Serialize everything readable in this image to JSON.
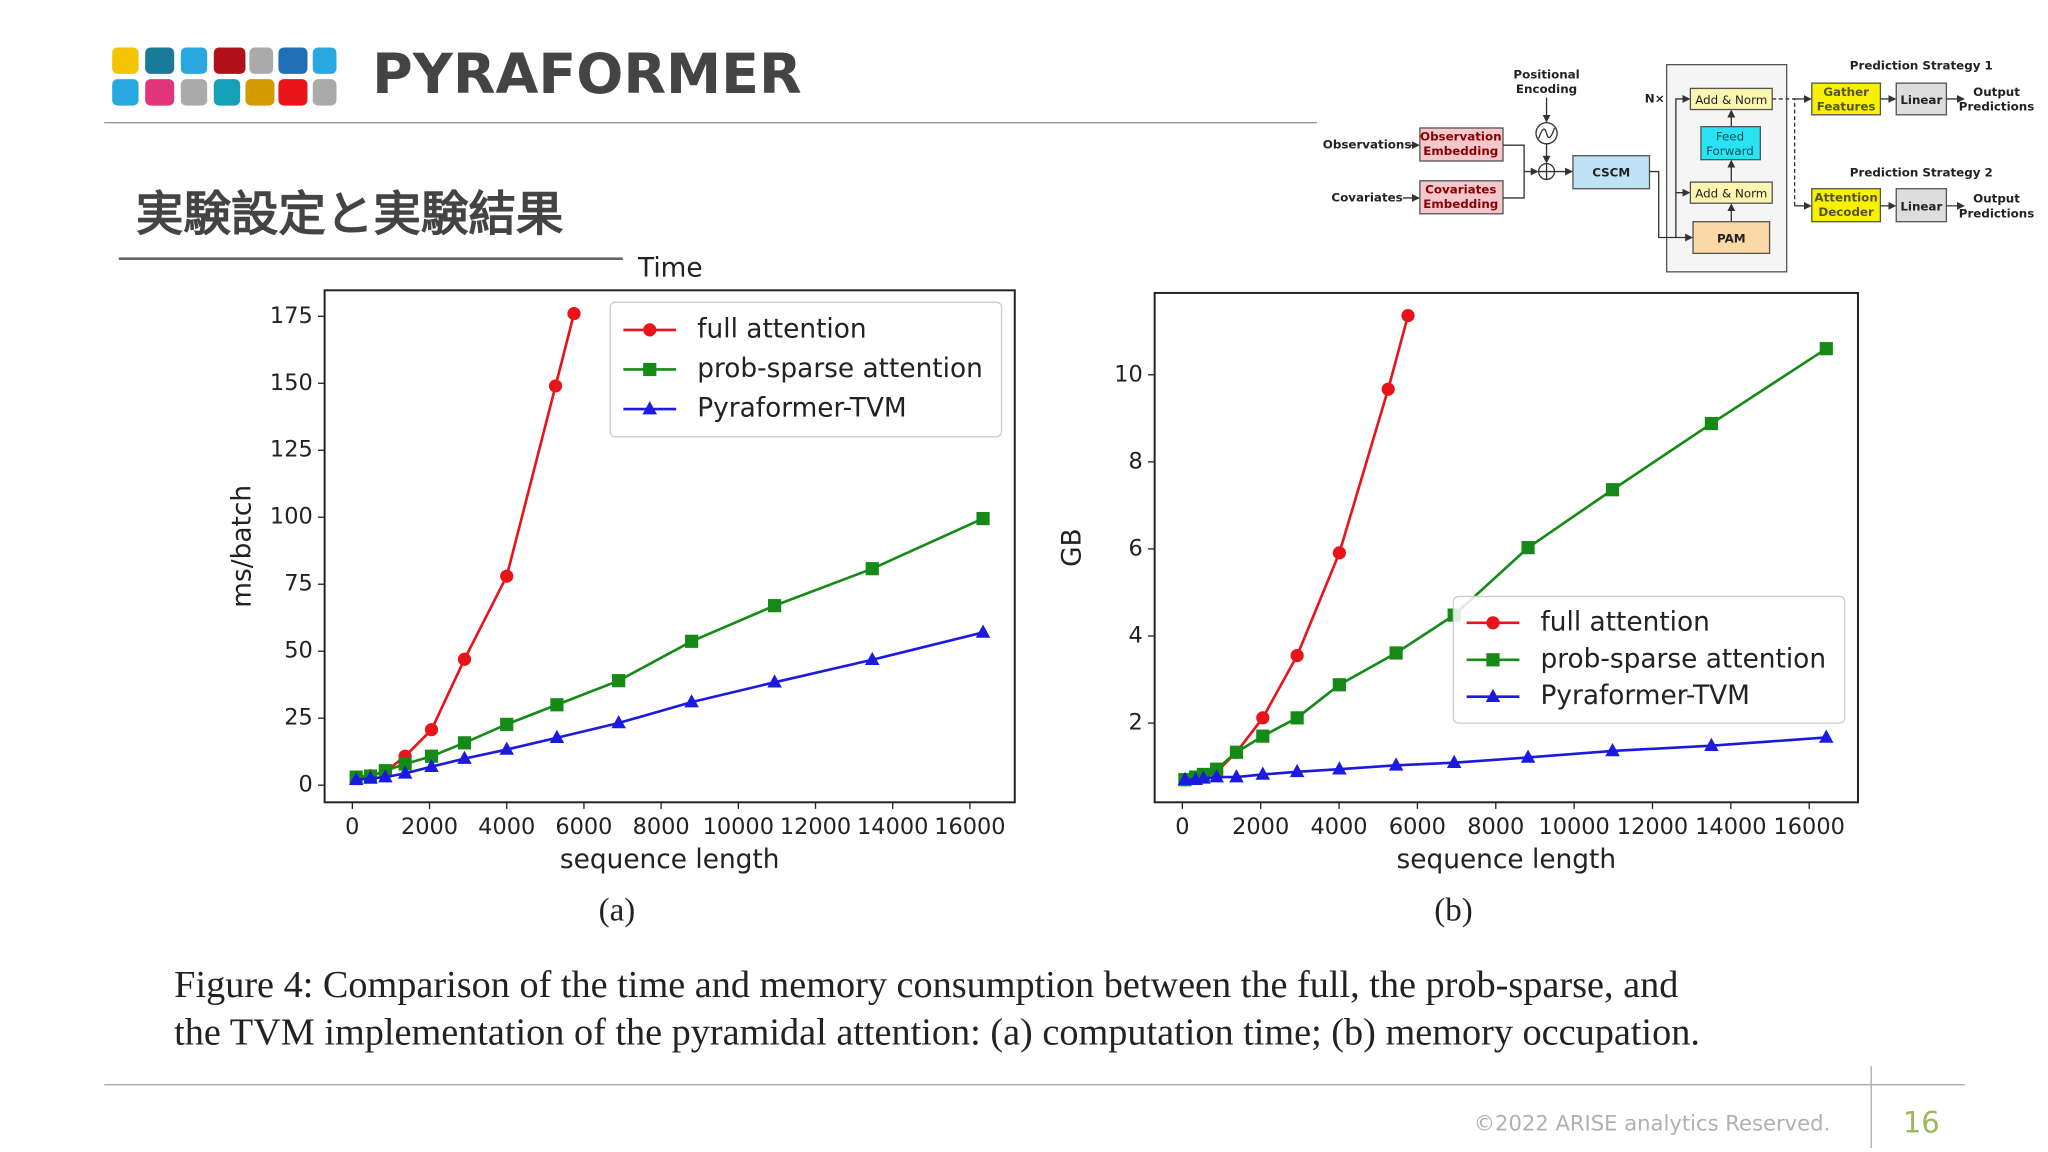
{
  "header": {
    "title": "PYRAFORMER",
    "subtitle": "実験設定と実験結果"
  },
  "diagram": {
    "positional_encoding": [
      "Positional",
      "Encoding"
    ],
    "observations": "Observations",
    "covariates": "Covariates",
    "observation_embedding": [
      "Observation",
      "Embedding"
    ],
    "covariates_embedding": [
      "Covariates",
      "Embedding"
    ],
    "cscm": "CSCM",
    "repeat": "N×",
    "add_norm_top": "Add & Norm",
    "feed_forward": [
      "Feed",
      "Forward"
    ],
    "add_norm_bottom": "Add & Norm",
    "pam": "PAM",
    "strategy1": "Prediction Strategy 1",
    "gather_features": [
      "Gather",
      "Features"
    ],
    "linear1": "Linear",
    "output1": [
      "Output",
      "Predictions"
    ],
    "strategy2": "Prediction Strategy 2",
    "attention_decoder": [
      "Attention",
      "Decoder"
    ],
    "linear2": "Linear",
    "output2": [
      "Output",
      "Predictions"
    ]
  },
  "chart_data": [
    {
      "type": "line",
      "annotation": "Time",
      "subcaption": "(a)",
      "xlabel": "sequence length",
      "ylabel": "ms/batch",
      "xlim": [
        -718,
        17162
      ],
      "ylim": [
        -6.4,
        184.7
      ],
      "xticks": [
        0,
        2000,
        4000,
        6000,
        8000,
        10000,
        12000,
        14000,
        16000
      ],
      "yticks": [
        0,
        25,
        50,
        75,
        100,
        125,
        150,
        175
      ],
      "legend": "upper right",
      "series": [
        {
          "name": "full attention",
          "color": "#e8141a",
          "marker": "circle",
          "x": [
            100,
            470,
            855,
            1368,
            2051,
            2906,
            4000,
            5265,
            5743
          ],
          "values": [
            3,
            3.5,
            5,
            10.8,
            20.7,
            47,
            78,
            149,
            176
          ]
        },
        {
          "name": "prob-sparse attention",
          "color": "#168a16",
          "marker": "square",
          "x": [
            100,
            470,
            855,
            1368,
            2051,
            2906,
            4000,
            5300,
            6900,
            8790,
            10940,
            13470,
            16340
          ],
          "values": [
            3,
            3.4,
            5.4,
            7.9,
            10.8,
            15.8,
            22.7,
            30,
            39,
            53.7,
            67,
            80.8,
            99.5
          ]
        },
        {
          "name": "Pyraformer-TVM",
          "color": "#1a1ae0",
          "marker": "triangle",
          "x": [
            100,
            470,
            855,
            1368,
            2051,
            2906,
            4000,
            5300,
            6900,
            8790,
            10940,
            13470,
            16340
          ],
          "values": [
            2,
            2.5,
            3,
            4.4,
            6.9,
            9.9,
            13.3,
            17.7,
            23.2,
            31,
            38.4,
            46.8,
            57
          ]
        }
      ]
    },
    {
      "type": "line",
      "subcaption": "(b)",
      "xlabel": "sequence length",
      "ylabel": "GB",
      "xlim": [
        -707,
        17245
      ],
      "ylim": [
        0.18,
        11.88
      ],
      "xticks": [
        0,
        2000,
        4000,
        6000,
        8000,
        10000,
        12000,
        14000,
        16000
      ],
      "yticks": [
        2,
        4,
        6,
        8,
        10
      ],
      "legend": "lower right",
      "series": [
        {
          "name": "full attention",
          "color": "#e8141a",
          "marker": "circle",
          "x": [
            67,
            337,
            539,
            876,
            1381,
            2054,
            2930,
            4008,
            5254,
            5760
          ],
          "values": [
            0.7,
            0.73,
            0.76,
            0.88,
            1.33,
            2.12,
            3.55,
            5.91,
            9.67,
            11.36
          ]
        },
        {
          "name": "prob-sparse attention",
          "color": "#168a16",
          "marker": "square",
          "x": [
            67,
            337,
            539,
            876,
            1381,
            2054,
            2930,
            4008,
            5456,
            6938,
            8824,
            10980,
            13504,
            16436
          ],
          "values": [
            0.7,
            0.76,
            0.82,
            0.94,
            1.33,
            1.7,
            2.12,
            2.88,
            3.61,
            4.48,
            6.03,
            7.36,
            8.88,
            10.6
          ]
        },
        {
          "name": "Pyraformer-TVM",
          "color": "#1a1ae0",
          "marker": "triangle",
          "x": [
            67,
            337,
            539,
            876,
            1381,
            2054,
            2930,
            4008,
            5456,
            6938,
            8824,
            10980,
            13504,
            16436
          ],
          "values": [
            0.7,
            0.7,
            0.73,
            0.76,
            0.76,
            0.82,
            0.88,
            0.94,
            1.03,
            1.09,
            1.21,
            1.36,
            1.48,
            1.67
          ]
        }
      ]
    }
  ],
  "caption": [
    "Figure 4: Comparison of the time and memory consumption between the full, the prob-sparse, and",
    "the TVM implementation of the pyramidal attention: (a) computation time; (b) memory occupation."
  ],
  "footer": {
    "copyright": "©2022 ARISE analytics Reserved.",
    "page": "16"
  }
}
